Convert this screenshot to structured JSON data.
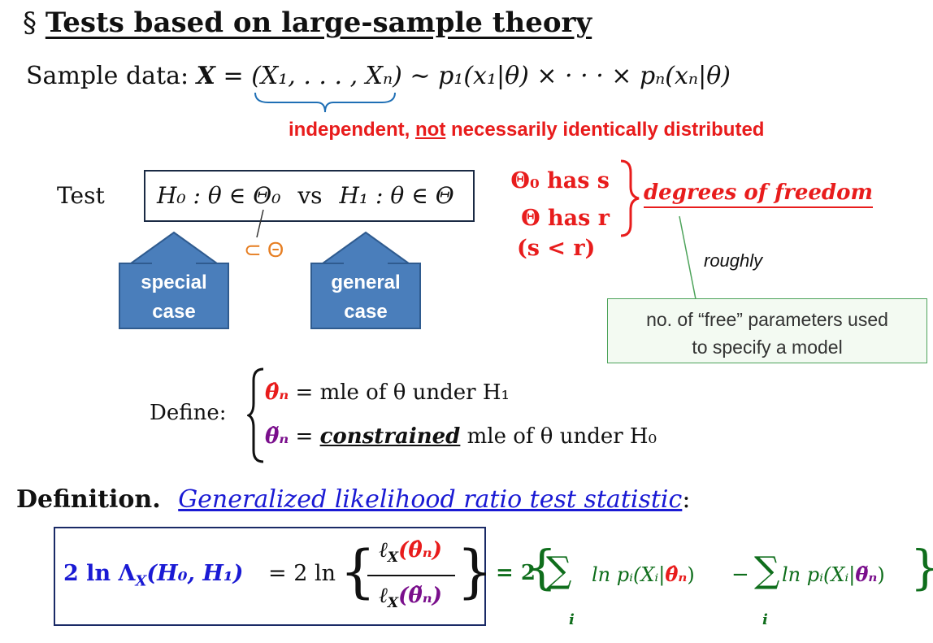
{
  "title": {
    "section_mark": "§",
    "text": "Tests based on large-sample theory"
  },
  "sample": {
    "label": "Sample data:",
    "X": "X",
    "eq": "=",
    "tuple": "(X₁, . . . , Xₙ)",
    "sim": "∼",
    "rhs": "p₁(x₁|θ) × · · · × pₙ(xₙ|θ)",
    "note_a": "independent, ",
    "note_not": "not",
    "note_b": " necessarily identically distributed"
  },
  "test": {
    "label": "Test",
    "h0": "H₀ : θ ∈ Θ₀",
    "vs": "vs",
    "h1": "H₁ : θ ∈ Θ",
    "subset": "⊂ Θ",
    "special_line1": "special",
    "special_line2": "case",
    "general_line1": "general",
    "general_line2": "case"
  },
  "dof": {
    "line1": "Θ₀ has s",
    "line2": "Θ has r",
    "line3": "(s < r)",
    "label": "degrees of freedom",
    "roughly": "roughly",
    "note_line1": "no. of “free” parameters used",
    "note_line2": "to specify a model"
  },
  "define": {
    "label": "Define:",
    "hat_theta": "θ̂ₙ",
    "line1_rest": "= mle of θ under H₁",
    "tilde_theta": "θ̃ₙ",
    "line2_eq": "=",
    "constrained": "constrained",
    "line2_rest": "mle of θ under H₀"
  },
  "definition": {
    "label": "Definition.",
    "term": "Generalized likelihood ratio test statistic",
    "colon": ":",
    "lhs": "2 ln Λ",
    "lhs_sub": "X",
    "lhs_args": "(H₀, H₁)",
    "eq_2ln": "= 2 ln",
    "num_l": "ℓ",
    "num_sub": "X",
    "num_arg": "(θ̂ₙ)",
    "den_arg": "(θ̃ₙ)",
    "rhs_start": "= 2",
    "sum": "∑",
    "sum_index": "i",
    "ln_p1": "ln pᵢ(Xᵢ|",
    "ln_p1_theta": "θ̂ₙ",
    "close1": ")",
    "minus": "−",
    "ln_p2": "ln pᵢ(Xᵢ|",
    "ln_p2_theta": "θ̃ₙ",
    "close2": ")"
  }
}
